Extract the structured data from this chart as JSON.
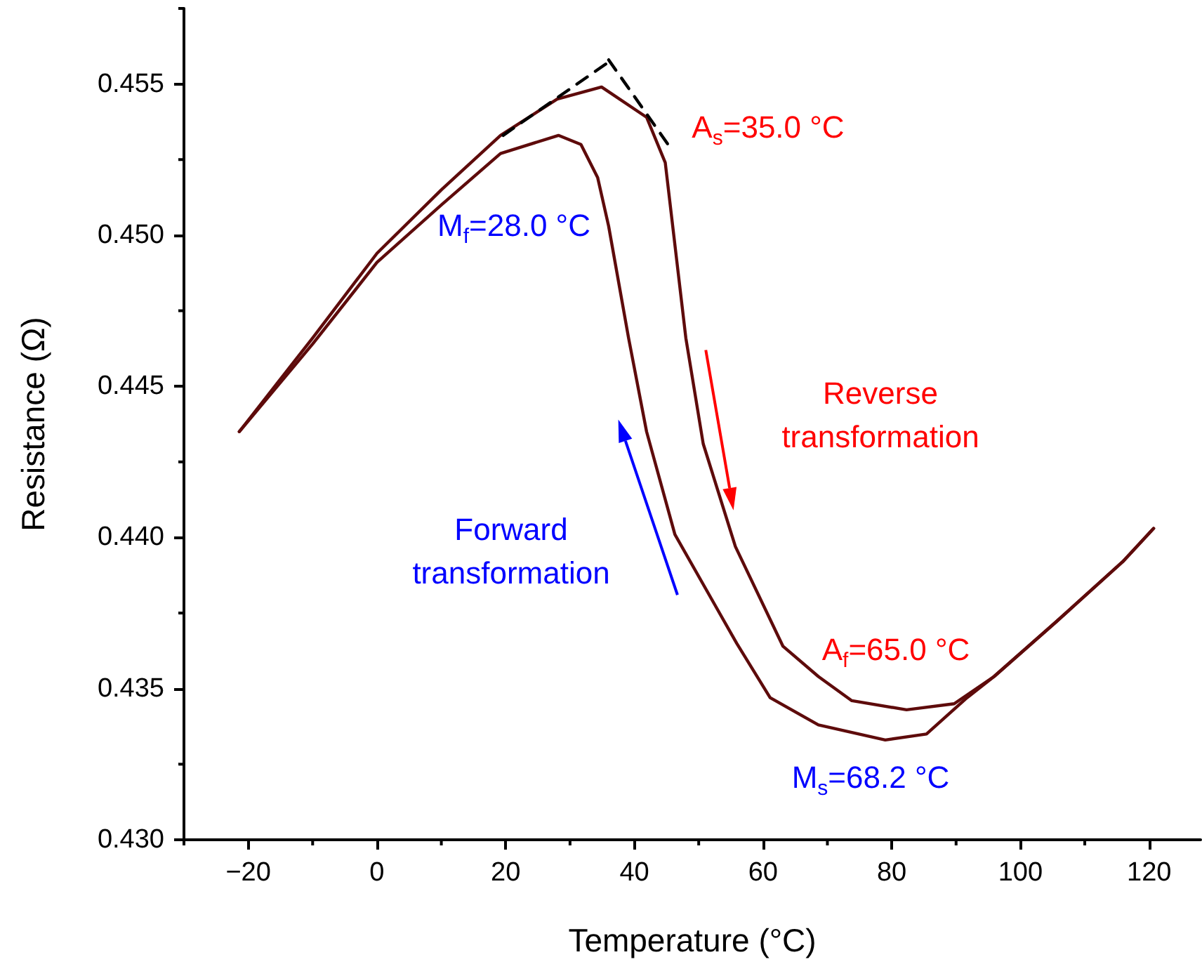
{
  "chart_data": {
    "type": "line",
    "xlabel": "Temperature (°C)",
    "ylabel": "Resistance (Ω)",
    "xlim": [
      -30,
      128
    ],
    "xticks": [
      {
        "value": -20,
        "label": "−20"
      },
      0,
      20,
      40,
      60,
      80,
      100,
      120
    ],
    "ylim": [
      0.43,
      0.4575
    ],
    "yticks": [
      {
        "value": 0.43,
        "label": "0.430"
      },
      {
        "value": 0.435,
        "label": "0.435"
      },
      {
        "value": 0.44,
        "label": "0.440"
      },
      {
        "value": 0.445,
        "label": "0.445"
      },
      {
        "value": 0.45,
        "label": "0.450"
      },
      {
        "value": 0.455,
        "label": "0.455"
      }
    ],
    "grid": false,
    "marker": "none",
    "series": [
      {
        "color": "#5e0b0b",
        "line_style": "solid",
        "x": [
          -21.4,
          -10,
          0,
          10,
          19.2,
          28,
          34.9,
          41.9,
          44.8,
          48,
          50.7,
          55.7,
          63.1,
          68.6,
          73.8,
          82.3,
          89.7,
          95.9,
          105.5,
          115.9,
          120.7
        ],
        "values": [
          0.4435,
          0.4466,
          0.4494,
          0.4515,
          0.4533,
          0.4545,
          0.4549,
          0.4539,
          0.4524,
          0.4466,
          0.4431,
          0.4397,
          0.4364,
          0.4354,
          0.4346,
          0.4343,
          0.4345,
          0.4354,
          0.4372,
          0.4392,
          0.4403
        ]
      },
      {
        "color": "#5e0b0b",
        "line_style": "solid",
        "x": [
          120.7,
          115.9,
          105.5,
          95.9,
          91.7,
          85.4,
          79,
          68.6,
          61.1,
          55.9,
          46.3,
          41.9,
          39.1,
          36,
          34.3,
          31.7,
          28.2,
          19.2,
          10,
          0,
          -10,
          -21.4
        ],
        "values": [
          0.4403,
          0.4392,
          0.4372,
          0.4354,
          0.4347,
          0.4335,
          0.4333,
          0.4338,
          0.4347,
          0.4365,
          0.4401,
          0.4435,
          0.4466,
          0.4503,
          0.4519,
          0.453,
          0.4533,
          0.4527,
          0.451,
          0.4491,
          0.4464,
          0.4435
        ]
      },
      {
        "color": "#000000",
        "line_style": "dashed",
        "x": [
          19.6,
          36.5
        ],
        "values": [
          0.4533,
          0.4558
        ]
      },
      {
        "color": "#000000",
        "line_style": "dashed",
        "x": [
          36,
          45.9
        ],
        "values": [
          0.4558,
          0.4528
        ]
      }
    ],
    "annotations": [
      "A$_{s}$=35.0 °C",
      "M$_{f}$=28.0 °C",
      "A$_{f}$=65.0 °C",
      "M$_{s}$=68.2 °C",
      "Reverse\ntransformation",
      "Forward\ntransformation"
    ]
  }
}
